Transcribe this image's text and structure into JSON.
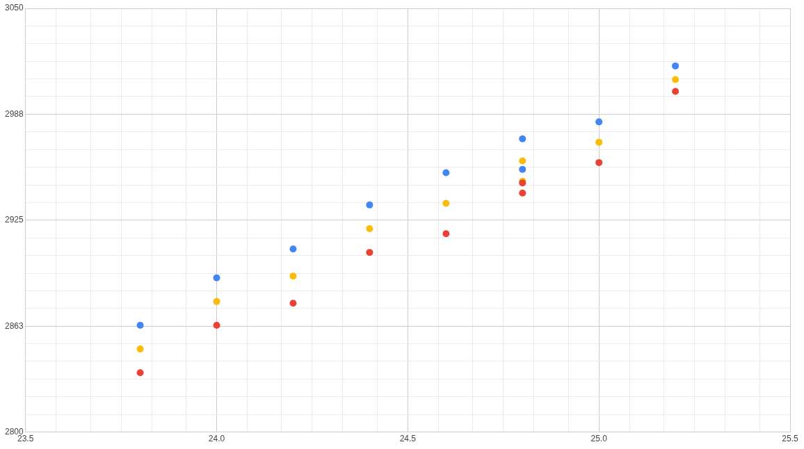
{
  "chart_data": {
    "type": "scatter",
    "x": [
      23.8,
      24.0,
      24.2,
      24.4,
      24.6,
      24.8,
      24.8,
      25.0,
      25.2
    ],
    "series": [
      {
        "color": "#4285f4",
        "values": [
          2863,
          2891,
          2908,
          2934,
          2953,
          2973,
          2955,
          2983,
          3016
        ]
      },
      {
        "color": "#fbbc04",
        "values": [
          2849,
          2877,
          2892,
          2920,
          2935,
          2960,
          2948,
          2971,
          3008
        ]
      },
      {
        "color": "#ea4335",
        "values": [
          2835,
          2863,
          2876,
          2906,
          2917,
          2947,
          2941,
          2959,
          3001
        ]
      }
    ],
    "xlim": [
      23.5,
      25.5
    ],
    "xticks": [
      23.5,
      {
        "value": 23.58,
        "label": null
      },
      {
        "value": 23.67,
        "label": null
      },
      {
        "value": 23.75,
        "label": null
      },
      {
        "value": 23.83,
        "label": null
      },
      {
        "value": 23.92,
        "label": null
      },
      {
        "value": 24,
        "label": "24.0"
      },
      {
        "value": 24.08,
        "label": null
      },
      {
        "value": 24.17,
        "label": null
      },
      {
        "value": 24.25,
        "label": null
      },
      {
        "value": 24.33,
        "label": null
      },
      {
        "value": 24.42,
        "label": null
      },
      24.5,
      {
        "value": 24.58,
        "label": null
      },
      {
        "value": 24.67,
        "label": null
      },
      {
        "value": 24.75,
        "label": null
      },
      {
        "value": 24.83,
        "label": null
      },
      {
        "value": 24.92,
        "label": null
      },
      {
        "value": 25,
        "label": "25.0"
      },
      {
        "value": 25.08,
        "label": null
      },
      {
        "value": 25.17,
        "label": null
      },
      {
        "value": 25.25,
        "label": null
      },
      {
        "value": 25.33,
        "label": null
      },
      {
        "value": 25.42,
        "label": null
      },
      25.5
    ],
    "ylim": [
      2800,
      3050
    ],
    "yticks": [
      2800,
      {
        "value": 2810.42,
        "label": null
      },
      {
        "value": 2820.83,
        "label": null
      },
      {
        "value": 2831.25,
        "label": null
      },
      {
        "value": 2841.67,
        "label": null
      },
      {
        "value": 2852.08,
        "label": null
      },
      {
        "value": 2862.5,
        "label": "2863"
      },
      {
        "value": 2872.92,
        "label": null
      },
      {
        "value": 2883.33,
        "label": null
      },
      {
        "value": 2893.75,
        "label": null
      },
      {
        "value": 2904.17,
        "label": null
      },
      {
        "value": 2914.58,
        "label": null
      },
      2925,
      {
        "value": 2935.42,
        "label": null
      },
      {
        "value": 2945.83,
        "label": null
      },
      {
        "value": 2956.25,
        "label": null
      },
      {
        "value": 2966.67,
        "label": null
      },
      {
        "value": 2977.08,
        "label": null
      },
      {
        "value": 2987.5,
        "label": "2988"
      },
      {
        "value": 2997.92,
        "label": null
      },
      {
        "value": 3008.33,
        "label": null
      },
      {
        "value": 3018.75,
        "label": null
      },
      {
        "value": 3029.17,
        "label": null
      },
      {
        "value": 3039.58,
        "label": null
      },
      3050
    ],
    "grid": true,
    "marker": "circle"
  }
}
